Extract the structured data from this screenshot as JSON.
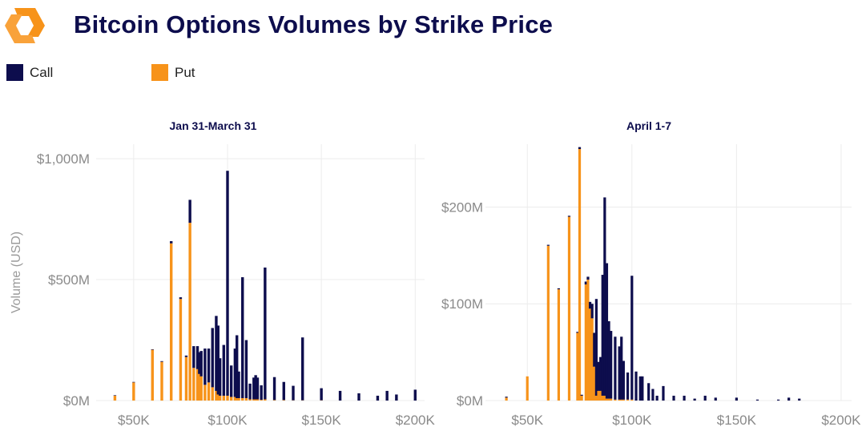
{
  "header": {
    "title": "Bitcoin Options Volumes by Strike Price",
    "logo_icon": "exchange-logo-icon"
  },
  "legend": [
    {
      "label": "Call",
      "color": "#0d0d4d"
    },
    {
      "label": "Put",
      "color": "#f7931a"
    }
  ],
  "colors": {
    "call": "#0d0d4d",
    "put": "#f7931a",
    "grid": "#ececec"
  },
  "chart_data": [
    {
      "type": "bar",
      "stacked": true,
      "title": "Jan 31-March 31",
      "xlabel": "",
      "ylabel": "Volume (USD)",
      "xlim": [
        30000,
        205000
      ],
      "ylim": [
        0,
        1060
      ],
      "x_ticks": [
        50000,
        100000,
        150000,
        200000
      ],
      "x_tick_labels": [
        "$50K",
        "$100K",
        "$150K",
        "$200K"
      ],
      "y_ticks": [
        0,
        500,
        1000
      ],
      "y_tick_labels": [
        "$0M",
        "$500M",
        "$1,000M"
      ],
      "y_unit": "USD millions",
      "grid": true,
      "x": [
        40000,
        50000,
        60000,
        65000,
        70000,
        75000,
        78000,
        80000,
        82000,
        84000,
        85000,
        86000,
        88000,
        90000,
        92000,
        94000,
        95000,
        96000,
        98000,
        100000,
        102000,
        104000,
        105000,
        106000,
        108000,
        110000,
        112000,
        114000,
        115000,
        116000,
        118000,
        120000,
        125000,
        130000,
        135000,
        140000,
        150000,
        160000,
        170000,
        180000,
        185000,
        190000,
        200000
      ],
      "series": [
        {
          "name": "Call",
          "values": [
            2,
            2,
            2,
            3,
            9,
            7,
            6,
            95,
            90,
            95,
            90,
            105,
            150,
            140,
            245,
            310,
            285,
            155,
            210,
            930,
            130,
            200,
            260,
            110,
            500,
            240,
            65,
            90,
            100,
            90,
            60,
            545,
            95,
            75,
            60,
            260,
            50,
            40,
            30,
            20,
            40,
            25,
            45
          ]
        },
        {
          "name": "Put",
          "values": [
            20,
            75,
            210,
            160,
            650,
            420,
            180,
            735,
            135,
            130,
            110,
            100,
            65,
            75,
            55,
            40,
            25,
            20,
            20,
            20,
            15,
            15,
            10,
            10,
            10,
            10,
            5,
            5,
            5,
            5,
            3,
            5,
            2,
            2,
            1,
            1,
            1,
            0,
            0,
            0,
            0,
            0,
            0
          ]
        }
      ]
    },
    {
      "type": "bar",
      "stacked": true,
      "title": "April 1-7",
      "xlabel": "",
      "ylabel": "",
      "xlim": [
        30000,
        205000
      ],
      "ylim": [
        0,
        265
      ],
      "x_ticks": [
        50000,
        100000,
        150000,
        200000
      ],
      "x_tick_labels": [
        "$50K",
        "$100K",
        "$150K",
        "$200K"
      ],
      "y_ticks": [
        0,
        100,
        200
      ],
      "y_tick_labels": [
        "$0M",
        "$100M",
        "$200M"
      ],
      "y_unit": "USD millions",
      "grid": true,
      "x": [
        40000,
        50000,
        60000,
        65000,
        70000,
        74000,
        75000,
        76000,
        78000,
        79000,
        80000,
        81000,
        82000,
        83000,
        84000,
        85000,
        86000,
        87000,
        88000,
        89000,
        90000,
        92000,
        94000,
        95000,
        96000,
        98000,
        100000,
        102000,
        104000,
        105000,
        108000,
        110000,
        112000,
        115000,
        120000,
        125000,
        130000,
        135000,
        140000,
        150000,
        160000,
        170000,
        175000,
        180000
      ],
      "series": [
        {
          "name": "Call",
          "values": [
            1,
            0,
            1,
            1,
            1,
            1,
            2,
            1,
            3,
            3,
            7,
            15,
            35,
            100,
            30,
            35,
            125,
            205,
            140,
            80,
            70,
            65,
            55,
            65,
            40,
            28,
            128,
            30,
            25,
            25,
            18,
            12,
            5,
            15,
            5,
            5,
            2,
            5,
            3,
            3,
            1,
            1,
            3,
            2
          ]
        },
        {
          "name": "Put",
          "values": [
            3,
            25,
            160,
            115,
            190,
            70,
            260,
            5,
            120,
            125,
            95,
            85,
            35,
            5,
            10,
            10,
            5,
            5,
            2,
            2,
            2,
            1,
            1,
            1,
            1,
            1,
            1,
            0,
            0,
            0,
            0,
            0,
            0,
            0,
            0,
            0,
            0,
            0,
            0,
            0,
            0,
            0,
            0,
            0
          ]
        }
      ]
    }
  ]
}
